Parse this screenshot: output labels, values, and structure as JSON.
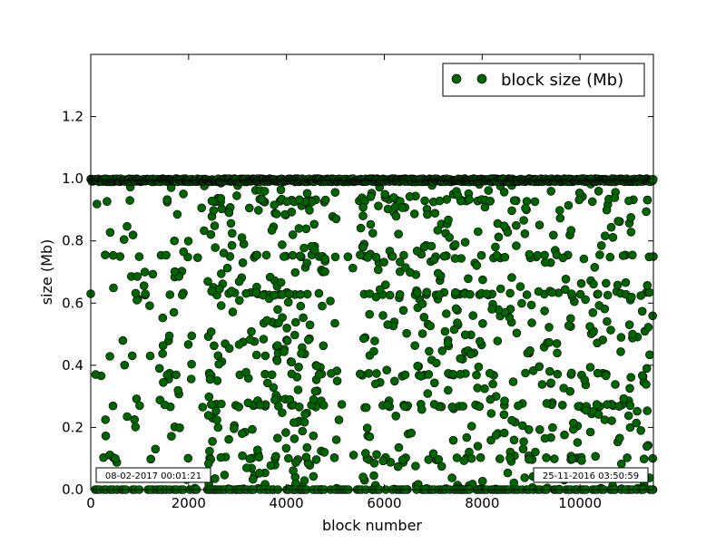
{
  "chart_data": {
    "type": "scatter",
    "xlabel": "block number",
    "ylabel": "size (Mb)",
    "xlim": [
      0,
      11500
    ],
    "ylim": [
      0,
      1.4
    ],
    "xticks": [
      0,
      2000,
      4000,
      6000,
      8000,
      10000
    ],
    "xtick_labels": [
      "0",
      "2000",
      "4000",
      "6000",
      "8000",
      "10000"
    ],
    "yticks": [
      0.0,
      0.2,
      0.4,
      0.6,
      0.8,
      1.0,
      1.2
    ],
    "ytick_labels": [
      "0.0",
      "0.2",
      "0.4",
      "0.6",
      "0.8",
      "1.0",
      "1.2"
    ],
    "legend_position": "top-right",
    "grid": false,
    "series": [
      {
        "name": "block size (Mb)",
        "color": "#006400",
        "marker": "circle",
        "density_profile": [
          {
            "x_range": [
              0,
              450
            ],
            "density": 0.15
          },
          {
            "x_range": [
              450,
              1400
            ],
            "density": 0.25
          },
          {
            "x_range": [
              1400,
              2000
            ],
            "density": 0.6
          },
          {
            "x_range": [
              2000,
              2400
            ],
            "density": 0.2
          },
          {
            "x_range": [
              2400,
              4800
            ],
            "density": 1.0
          },
          {
            "x_range": [
              4800,
              5500
            ],
            "density": 0.2
          },
          {
            "x_range": [
              5500,
              8000
            ],
            "density": 0.85
          },
          {
            "x_range": [
              8000,
              11500
            ],
            "density": 0.7
          }
        ],
        "dense_levels": [
          0.0,
          0.1,
          0.27,
          0.37,
          0.63,
          0.75,
          0.93,
          1.0
        ],
        "ceiling_band": [
          0.99,
          1.0
        ],
        "notable_points": [
          {
            "x": 0,
            "y": 0.63
          },
          {
            "x": 100,
            "y": 0.37
          },
          {
            "x": 300,
            "y": 0.225
          },
          {
            "x": 500,
            "y": 0.1
          },
          {
            "x": 600,
            "y": 0.75
          },
          {
            "x": 800,
            "y": 0.93
          },
          {
            "x": 1000,
            "y": 0.27
          },
          {
            "x": 11500,
            "y": 0.75
          }
        ]
      }
    ],
    "annotations": [
      {
        "text": "08-02-2017 00:01:21",
        "position": "bottom-left"
      },
      {
        "text": "25-11-2016 03:50:59",
        "position": "bottom-right"
      }
    ]
  }
}
